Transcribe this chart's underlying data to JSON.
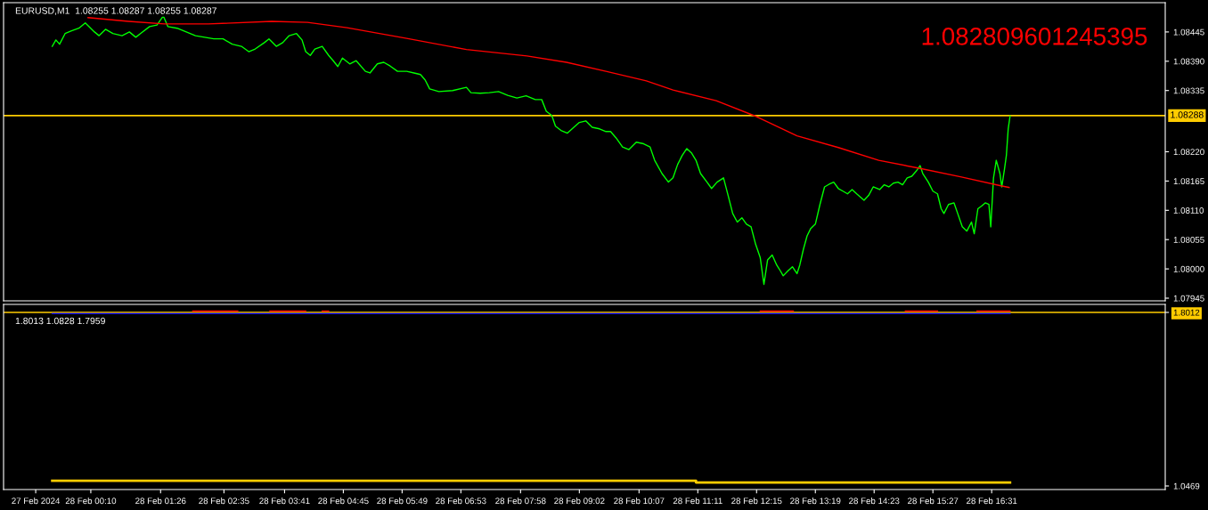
{
  "chart_data": [
    {
      "type": "line",
      "title": "EURUSD,M1  1.08255 1.08287 1.08255 1.08287",
      "series": [
        {
          "color": "#00ff00",
          "x": [
            "2024-02-27T23:28",
            "2024-02-27T23:32",
            "2024-02-27T23:36",
            "2024-02-27T23:42",
            "2024-02-27T23:49",
            "2024-02-27T23:57",
            "2024-02-28T00:04",
            "2024-02-28T00:14",
            "2024-02-28T00:19",
            "2024-02-28T00:26",
            "2024-02-28T00:34",
            "2024-02-28T00:44",
            "2024-02-28T00:52",
            "2024-02-28T00:59",
            "2024-02-28T01:04",
            "2024-02-28T01:14",
            "2024-02-28T01:22",
            "2024-02-28T01:29",
            "2024-02-28T01:34",
            "2024-02-28T01:44",
            "2024-02-28T01:54",
            "2024-02-28T02:04",
            "2024-02-28T02:14",
            "2024-02-28T02:24",
            "2024-02-28T02:34",
            "2024-02-28T02:44",
            "2024-02-28T02:54",
            "2024-02-28T03:02",
            "2024-02-28T03:09",
            "2024-02-28T03:19",
            "2024-02-28T03:24",
            "2024-02-28T03:32",
            "2024-02-28T03:39",
            "2024-02-28T03:46",
            "2024-02-28T03:54",
            "2024-02-28T04:00",
            "2024-02-28T04:04",
            "2024-02-28T04:09",
            "2024-02-28T04:14",
            "2024-02-28T04:22",
            "2024-02-28T04:29",
            "2024-02-28T04:34",
            "2024-02-28T04:39",
            "2024-02-28T04:44",
            "2024-02-28T04:52",
            "2024-02-28T04:59",
            "2024-02-28T05:09",
            "2024-02-28T05:14",
            "2024-02-28T05:22",
            "2024-02-28T05:29",
            "2024-02-28T05:36",
            "2024-02-28T05:44",
            "2024-02-28T05:54",
            "2024-02-28T06:02",
            "2024-02-28T06:09",
            "2024-02-28T06:14",
            "2024-02-28T06:19",
            "2024-02-28T06:29",
            "2024-02-28T06:44",
            "2024-02-28T06:59",
            "2024-02-28T07:04",
            "2024-02-28T07:14",
            "2024-02-28T07:24",
            "2024-02-28T07:34",
            "2024-02-28T07:44",
            "2024-02-28T07:54",
            "2024-02-28T08:04",
            "2024-02-28T08:14",
            "2024-02-28T08:21",
            "2024-02-28T08:26",
            "2024-02-28T08:32",
            "2024-02-28T08:36",
            "2024-02-28T08:42",
            "2024-02-28T08:49",
            "2024-02-28T08:56",
            "2024-02-28T09:02",
            "2024-02-28T09:09",
            "2024-02-28T09:16",
            "2024-02-28T09:24",
            "2024-02-28T09:31",
            "2024-02-28T09:36",
            "2024-02-28T09:42",
            "2024-02-28T09:49",
            "2024-02-28T09:56",
            "2024-02-28T10:04",
            "2024-02-28T10:12",
            "2024-02-28T10:19",
            "2024-02-28T10:24",
            "2024-02-28T10:32",
            "2024-02-28T10:39",
            "2024-02-28T10:44",
            "2024-02-28T10:49",
            "2024-02-28T10:54",
            "2024-02-28T10:59",
            "2024-02-28T11:04",
            "2024-02-28T11:09",
            "2024-02-28T11:14",
            "2024-02-28T11:21",
            "2024-02-28T11:26",
            "2024-02-28T11:32",
            "2024-02-28T11:39",
            "2024-02-28T11:44",
            "2024-02-28T11:49",
            "2024-02-28T11:54",
            "2024-02-28T11:59",
            "2024-02-28T12:04",
            "2024-02-28T12:09",
            "2024-02-28T12:14",
            "2024-02-28T12:19",
            "2024-02-28T12:23",
            "2024-02-28T12:27",
            "2024-02-28T12:32",
            "2024-02-28T12:37",
            "2024-02-28T12:41",
            "2024-02-28T12:44",
            "2024-02-28T12:49",
            "2024-02-28T12:54",
            "2024-02-28T12:59",
            "2024-02-28T13:02",
            "2024-02-28T13:06",
            "2024-02-28T13:10",
            "2024-02-28T13:14",
            "2024-02-28T13:19",
            "2024-02-28T13:24",
            "2024-02-28T13:29",
            "2024-02-28T13:34",
            "2024-02-28T13:39",
            "2024-02-28T13:44",
            "2024-02-28T13:49",
            "2024-02-28T13:54",
            "2024-02-28T13:59",
            "2024-02-28T14:04",
            "2024-02-28T14:12",
            "2024-02-28T14:17",
            "2024-02-28T14:22",
            "2024-02-28T14:29",
            "2024-02-28T14:34",
            "2024-02-28T14:39",
            "2024-02-28T14:44",
            "2024-02-28T14:49",
            "2024-02-28T14:54",
            "2024-02-28T14:59",
            "2024-02-28T15:04",
            "2024-02-28T15:09",
            "2024-02-28T15:13",
            "2024-02-28T15:16",
            "2024-02-28T15:22",
            "2024-02-28T15:27",
            "2024-02-28T15:32",
            "2024-02-28T15:36",
            "2024-02-28T15:39",
            "2024-02-28T15:44",
            "2024-02-28T15:50",
            "2024-02-28T15:54",
            "2024-02-28T15:59",
            "2024-02-28T16:04",
            "2024-02-28T16:09",
            "2024-02-28T16:12",
            "2024-02-28T16:16",
            "2024-02-28T16:20",
            "2024-02-28T16:24",
            "2024-02-28T16:28",
            "2024-02-28T16:30",
            "2024-02-28T16:33",
            "2024-02-28T16:36",
            "2024-02-28T16:40",
            "2024-02-28T16:42",
            "2024-02-28T16:45",
            "2024-02-28T16:47",
            "2024-02-28T16:49",
            "2024-02-28T16:51"
          ],
          "values": [
            1.08418,
            1.0843,
            1.08422,
            1.08442,
            1.08447,
            1.08452,
            1.08462,
            1.08445,
            1.08438,
            1.0845,
            1.08442,
            1.08438,
            1.08445,
            1.08435,
            1.08442,
            1.08455,
            1.08458,
            1.08475,
            1.08455,
            1.08452,
            1.08445,
            1.08438,
            1.08435,
            1.08432,
            1.08432,
            1.08422,
            1.08418,
            1.08408,
            1.08413,
            1.08425,
            1.08432,
            1.08418,
            1.08425,
            1.08438,
            1.08442,
            1.0843,
            1.08408,
            1.08401,
            1.08413,
            1.08418,
            1.08401,
            1.08391,
            1.0838,
            1.08396,
            1.08385,
            1.08391,
            1.08371,
            1.08368,
            1.08385,
            1.08388,
            1.08381,
            1.08371,
            1.08371,
            1.08368,
            1.08365,
            1.08355,
            1.08338,
            1.08333,
            1.08335,
            1.08341,
            1.08331,
            1.0833,
            1.08331,
            1.08333,
            1.08326,
            1.08321,
            1.08325,
            1.08318,
            1.08318,
            1.08296,
            1.08288,
            1.08268,
            1.0826,
            1.08255,
            1.08266,
            1.08275,
            1.08278,
            1.08266,
            1.08263,
            1.08258,
            1.08258,
            1.08246,
            1.08229,
            1.08224,
            1.08238,
            1.08235,
            1.08229,
            1.08204,
            1.08179,
            1.08163,
            1.08171,
            1.08196,
            1.08213,
            1.08226,
            1.08218,
            1.08204,
            1.08179,
            1.08163,
            1.08151,
            1.08163,
            1.08171,
            1.08138,
            1.08104,
            1.08088,
            1.08096,
            1.08084,
            1.08079,
            1.08046,
            1.08021,
            1.07971,
            1.08017,
            1.08026,
            1.08007,
            1.07996,
            1.07987,
            1.07996,
            1.08004,
            1.07991,
            1.08007,
            1.08037,
            1.08062,
            1.08076,
            1.08084,
            1.08121,
            1.08154,
            1.08159,
            1.08163,
            1.08151,
            1.08146,
            1.08141,
            1.08149,
            1.08141,
            1.08129,
            1.08138,
            1.08154,
            1.08149,
            1.08158,
            1.08154,
            1.08161,
            1.08163,
            1.08158,
            1.08171,
            1.08174,
            1.08184,
            1.08194,
            1.08179,
            1.08163,
            1.08146,
            1.08141,
            1.08113,
            1.08104,
            1.08121,
            1.08124,
            1.08104,
            1.08079,
            1.08071,
            1.08088,
            1.08066,
            1.08113,
            1.08118,
            1.08124,
            1.08121,
            1.08079,
            1.08171,
            1.08204,
            1.08179,
            1.08154,
            1.08188,
            1.08213,
            1.08263,
            1.08287
          ]
        },
        {
          "color": "#ff0000",
          "x": [
            "2024-02-28T00:07",
            "2024-02-28T00:51",
            "2024-02-28T01:30",
            "2024-02-28T02:18",
            "2024-02-28T03:27",
            "2024-02-28T04:06",
            "2024-02-28T04:49",
            "2024-02-28T05:54",
            "2024-02-28T06:59",
            "2024-02-28T08:05",
            "2024-02-28T08:48",
            "2024-02-28T09:31",
            "2024-02-28T10:15",
            "2024-02-28T10:44",
            "2024-02-28T11:31",
            "2024-02-28T12:15",
            "2024-02-28T12:59",
            "2024-02-28T13:44",
            "2024-02-28T14:28",
            "2024-02-28T15:12",
            "2024-02-28T15:57",
            "2024-02-28T16:41",
            "2024-02-28T16:50"
          ],
          "values": [
            1.08472,
            1.08465,
            1.0846,
            1.0846,
            1.08465,
            1.08463,
            1.08453,
            1.08433,
            1.08412,
            1.084,
            1.08388,
            1.08371,
            1.08353,
            1.08336,
            1.08316,
            1.08286,
            1.0825,
            1.08228,
            1.08204,
            1.08189,
            1.08173,
            1.08156,
            1.08153
          ]
        }
      ],
      "ref_lines": [
        {
          "axis": "y",
          "value": 1.08288,
          "label": "1.08288",
          "color": "#ffcc00"
        }
      ],
      "annotations": [
        "1.082809601245395"
      ],
      "xlim": [
        "2024-02-27T22:35",
        "2024-02-28T19:40"
      ],
      "ylim": [
        1.0794,
        1.085
      ],
      "yticks": [
        {
          "value": 1.07945,
          "label": "1.07945"
        },
        {
          "value": 1.08,
          "label": "1.08000"
        },
        {
          "value": 1.08055,
          "label": "1.08055"
        },
        {
          "value": 1.0811,
          "label": "1.08110"
        },
        {
          "value": 1.08165,
          "label": "1.08165"
        },
        {
          "value": 1.0822,
          "label": "1.08220"
        },
        {
          "value": 1.08335,
          "label": "1.08335"
        },
        {
          "value": 1.0839,
          "label": "1.08390"
        },
        {
          "value": 1.08445,
          "label": "1.08445"
        }
      ],
      "tick_labels": "y"
    },
    {
      "type": "line",
      "title": "1.8013 1.0828 1.7959",
      "series": [
        {
          "color": "#0000ff",
          "x": [
            "2024-02-27T23:28",
            "2024-02-28T16:51"
          ],
          "values": [
            1.796,
            1.796
          ]
        },
        {
          "color": "#ff0000",
          "x": [
            "2024-02-28T02:01",
            "2024-02-28T02:50"
          ],
          "values": [
            1.807,
            1.807
          ]
        },
        {
          "color": "#ff0000",
          "x": [
            "2024-02-28T03:25",
            "2024-02-28T04:04"
          ],
          "values": [
            1.807,
            1.807
          ]
        },
        {
          "color": "#ff0000",
          "x": [
            "2024-02-28T04:22",
            "2024-02-28T04:29"
          ],
          "values": [
            1.807,
            1.807
          ]
        },
        {
          "color": "#ff0000",
          "x": [
            "2024-02-28T12:19",
            "2024-02-28T12:55"
          ],
          "values": [
            1.807,
            1.807
          ]
        },
        {
          "color": "#ff0000",
          "x": [
            "2024-02-28T14:57",
            "2024-02-28T15:32"
          ],
          "values": [
            1.807,
            1.807
          ]
        },
        {
          "color": "#ff0000",
          "x": [
            "2024-02-28T16:15",
            "2024-02-28T16:51"
          ],
          "values": [
            1.807,
            1.807
          ]
        },
        {
          "color": "#ffcc00",
          "type": "step",
          "x": [
            "2024-02-27T23:28",
            "2024-02-28T11:09",
            "2024-02-28T16:51"
          ],
          "values": [
            1.07,
            1.062,
            1.062
          ]
        }
      ],
      "ref_lines": [
        {
          "axis": "y",
          "value": 1.8012,
          "color": "#ffcc00"
        }
      ],
      "ylim": [
        1.0314,
        1.836
      ],
      "yticks": [
        1.0469,
        1.8012
      ],
      "xlim": [
        "2024-02-27T22:35",
        "2024-02-28T19:40"
      ],
      "xticks": [
        {
          "value": "2024-02-27T23:10",
          "label": "27 Feb 2024"
        },
        {
          "value": "2024-02-28T00:10",
          "label": "28 Feb 00:10"
        },
        {
          "value": "2024-02-28T01:26",
          "label": "28 Feb 01:26"
        },
        {
          "value": "2024-02-28T02:35",
          "label": "28 Feb 02:35"
        },
        {
          "value": "2024-02-28T03:41",
          "label": "28 Feb 03:41"
        },
        {
          "value": "2024-02-28T04:45",
          "label": "28 Feb 04:45"
        },
        {
          "value": "2024-02-28T05:49",
          "label": "28 Feb 05:49"
        },
        {
          "value": "2024-02-28T06:53",
          "label": "28 Feb 06:53"
        },
        {
          "value": "2024-02-28T07:58",
          "label": "28 Feb 07:58"
        },
        {
          "value": "2024-02-28T09:02",
          "label": "28 Feb 09:02"
        },
        {
          "value": "2024-02-28T10:07",
          "label": "28 Feb 10:07"
        },
        {
          "value": "2024-02-28T11:11",
          "label": "28 Feb 11:11"
        },
        {
          "value": "2024-02-28T12:15",
          "label": "28 Feb 12:15"
        },
        {
          "value": "2024-02-28T13:19",
          "label": "28 Feb 13:19"
        },
        {
          "value": "2024-02-28T14:23",
          "label": "28 Feb 14:23"
        },
        {
          "value": "2024-02-28T15:27",
          "label": "28 Feb 15:27"
        },
        {
          "value": "2024-02-28T16:31",
          "label": "28 Feb 16:31"
        }
      ],
      "tick_labels": "xy"
    }
  ]
}
